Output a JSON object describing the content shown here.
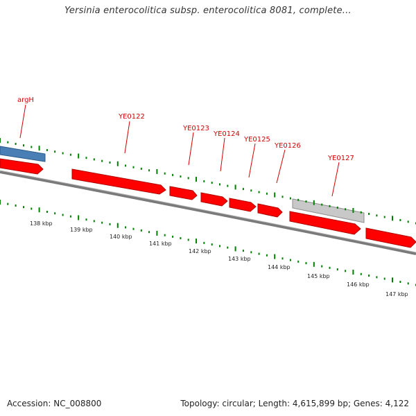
{
  "title": "Yersinia enterocolitica subsp. enterocolitica 8081, complete...",
  "footer": {
    "accession": "Accession: NC_008800",
    "summary": "Topology: circular; Length: 4,615,899 bp; Genes: 4,122"
  },
  "colors": {
    "forward_gene": "#ff0000",
    "other_gene": "#4a7fb5",
    "pseudo_gene": "#c8c8c8",
    "backbone": "#808080",
    "ticks": "#008000",
    "label": "#d40000"
  },
  "gene_labels": [
    "argH",
    "YE0122",
    "YE0123",
    "YE0124",
    "YE0125",
    "YE0126",
    "YE0127"
  ],
  "scale_labels": [
    "138 kbp",
    "139 kbp",
    "140 kbp",
    "141 kbp",
    "142 kbp",
    "143 kbp",
    "144 kbp",
    "145 kbp",
    "146 kbp",
    "147 kbp"
  ]
}
